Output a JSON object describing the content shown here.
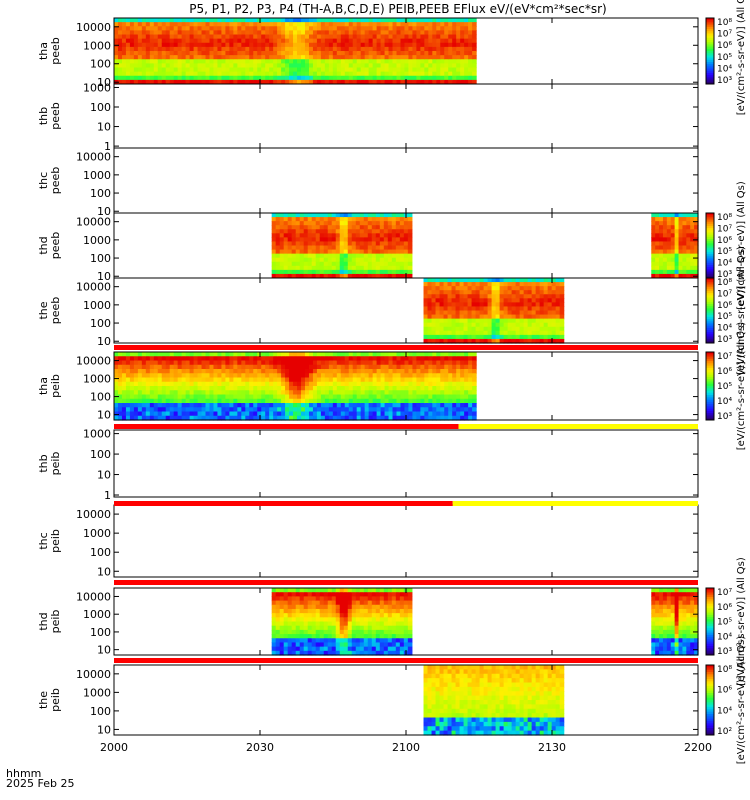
{
  "chart_data": {
    "type": "heatmap",
    "title": "P5, P1, P2, P3, P4 (TH-A,B,C,D,E) PEIB,PEEB EFlux eV/(eV*cm²*sec*sr)",
    "time_axis": {
      "ticks": [
        "2000",
        "2030",
        "2100",
        "2130",
        "2200"
      ],
      "range_hhmm": [
        "2000",
        "2200"
      ],
      "label_line1": "hhmm",
      "label_line2": "2025 Feb 25"
    },
    "panels": [
      {
        "label": [
          "tha",
          "peeb"
        ],
        "y_ticks": [
          "10",
          "100",
          "1000",
          "10000"
        ],
        "y_range": [
          8,
          30000
        ],
        "has_data": true,
        "segments": [
          {
            "start": 0,
            "end": 62
          }
        ],
        "scheme": "elec",
        "colorbar": true,
        "cbar_ticks": [
          "10³",
          "10⁴",
          "10⁵",
          "10⁶",
          "10⁷",
          "10⁸"
        ],
        "cbar_label": "[eV/(cm²-s-sr-eV)] (All Qs)"
      },
      {
        "label": [
          "thb",
          "peeb"
        ],
        "y_ticks": [
          "1",
          "10",
          "100",
          "1000"
        ],
        "y_range": [
          0.8,
          1500
        ],
        "has_data": false,
        "colorbar": false
      },
      {
        "label": [
          "thc",
          "peeb"
        ],
        "y_ticks": [
          "10",
          "100",
          "1000",
          "10000"
        ],
        "y_range": [
          8,
          30000
        ],
        "has_data": false,
        "colorbar": false
      },
      {
        "label": [
          "thd",
          "peeb"
        ],
        "y_ticks": [
          "10",
          "100",
          "1000",
          "10000"
        ],
        "y_range": [
          8,
          30000
        ],
        "has_data": true,
        "segments": [
          {
            "start": 27,
            "end": 51
          },
          {
            "start": 92,
            "end": 100
          }
        ],
        "scheme": "elec",
        "colorbar": true,
        "cbar_ticks": [
          "10³",
          "10⁴",
          "10⁵",
          "10⁶",
          "10⁷",
          "10⁸"
        ],
        "cbar_label": "[eV/(cm²-s-sr-eV)] (All Qs)"
      },
      {
        "label": [
          "the",
          "peeb"
        ],
        "y_ticks": [
          "10",
          "100",
          "1000",
          "10000"
        ],
        "y_range": [
          8,
          30000
        ],
        "has_data": true,
        "segments": [
          {
            "start": 53,
            "end": 77
          }
        ],
        "scheme": "elec",
        "colorbar": true,
        "cbar_ticks": [
          "10³",
          "10⁴",
          "10⁵",
          "10⁶",
          "10⁷",
          "10⁸"
        ],
        "cbar_label": "[eV/(cm²-s-sr-eV)] (All Qs)"
      },
      {
        "label": [
          "tha",
          "peib"
        ],
        "y_ticks": [
          "10",
          "100",
          "1000",
          "10000"
        ],
        "y_range": [
          5,
          30000
        ],
        "has_data": true,
        "segments": [
          {
            "start": 0,
            "end": 62
          }
        ],
        "scheme": "ion",
        "colorbar": true,
        "cbar_ticks": [
          "10³",
          "10⁴",
          "10⁵",
          "10⁶",
          "10⁷"
        ],
        "cbar_label": "[eV/(cm²-s-sr-eV)] (All Qs)",
        "mode_bar": [
          {
            "from": 0,
            "to": 100,
            "color": "red"
          }
        ]
      },
      {
        "label": [
          "thb",
          "peib"
        ],
        "y_ticks": [
          "1",
          "10",
          "100",
          "1000"
        ],
        "y_range": [
          0.8,
          1500
        ],
        "has_data": false,
        "colorbar": false,
        "mode_bar": [
          {
            "from": 0,
            "to": 59,
            "color": "red"
          },
          {
            "from": 59,
            "to": 100,
            "color": "yellow"
          }
        ]
      },
      {
        "label": [
          "thc",
          "peib"
        ],
        "y_ticks": [
          "10",
          "100",
          "1000",
          "10000"
        ],
        "y_range": [
          5,
          30000
        ],
        "has_data": false,
        "colorbar": false,
        "mode_bar": [
          {
            "from": 0,
            "to": 58,
            "color": "red"
          },
          {
            "from": 58,
            "to": 100,
            "color": "yellow"
          }
        ]
      },
      {
        "label": [
          "thd",
          "peib"
        ],
        "y_ticks": [
          "10",
          "100",
          "1000",
          "10000"
        ],
        "y_range": [
          5,
          30000
        ],
        "has_data": true,
        "segments": [
          {
            "start": 27,
            "end": 51
          },
          {
            "start": 92,
            "end": 100
          }
        ],
        "scheme": "ion",
        "colorbar": true,
        "cbar_ticks": [
          "10³",
          "10⁴",
          "10⁵",
          "10⁶",
          "10⁷"
        ],
        "cbar_label": "[eV/(cm²-s-sr-eV)] (All Qs)",
        "mode_bar": [
          {
            "from": 0,
            "to": 100,
            "color": "red"
          }
        ]
      },
      {
        "label": [
          "the",
          "peib"
        ],
        "y_ticks": [
          "10",
          "100",
          "1000",
          "10000"
        ],
        "y_range": [
          5,
          30000
        ],
        "has_data": true,
        "segments": [
          {
            "start": 53,
            "end": 77
          }
        ],
        "scheme": "ion_low",
        "colorbar": true,
        "cbar_ticks": [
          "10²",
          "10⁴",
          "10⁶",
          "10⁸"
        ],
        "cbar_label": "[eV/(cm²-s-sr-eV)] (All Qs)",
        "mode_bar": [
          {
            "from": 0,
            "to": 100,
            "color": "red"
          }
        ]
      }
    ]
  },
  "colors": {
    "mode_red": "#ff0000",
    "mode_yellow": "#ffff00"
  }
}
